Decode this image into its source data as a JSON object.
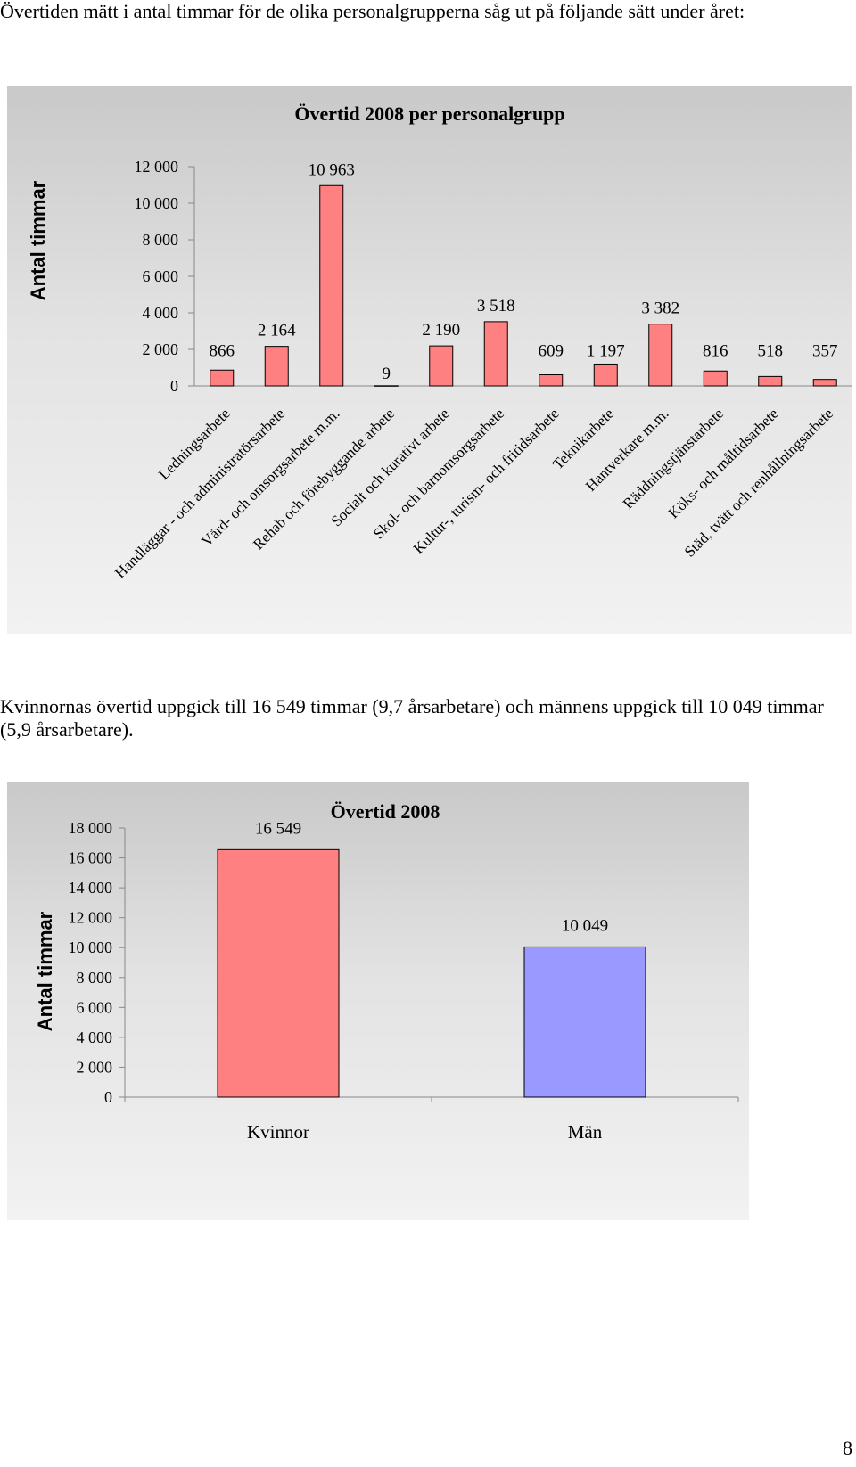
{
  "intro_text": "Övertiden mätt i antal timmar för de olika personalgrupperna såg ut på följande sätt under året:",
  "summary_text": "Kvinnornas övertid uppgick till 16 549 timmar (9,7 årsarbetare) och männens uppgick till 10 049 timmar (5,9 årsarbetare).",
  "page_number": "8",
  "chart_data": [
    {
      "type": "bar",
      "title": "Övertid 2008 per personalgrupp",
      "ylabel": "Antal timmar",
      "xlabel": "",
      "ylim": [
        0,
        12000
      ],
      "yticks": [
        0,
        2000,
        4000,
        6000,
        8000,
        10000,
        12000
      ],
      "ytick_labels": [
        "0",
        "2 000",
        "4 000",
        "6 000",
        "8 000",
        "10 000",
        "12 000"
      ],
      "categories": [
        "Ledningsarbete",
        "Handläggar - och administratörsarbete",
        "Vård- och omsorgsarbete m.m.",
        "Rehab och förebyggande arbete",
        "Socialt och kurativt arbete",
        "Skol- och barnomsorgsarbete",
        "Kultur-, turism- och fritidsarbete",
        "Teknikarbete",
        "Hantverkare m.m.",
        "Räddningstjänstarbete",
        "Köks- och måltidsarbete",
        "Städ, tvätt och renhållningsarbete"
      ],
      "values": [
        866,
        2164,
        10963,
        9,
        2190,
        3518,
        609,
        1197,
        3382,
        816,
        518,
        357
      ],
      "value_labels": [
        "866",
        "2 164",
        "10 963",
        "9",
        "2 190",
        "3 518",
        "609",
        "1 197",
        "3 382",
        "816",
        "518",
        "357"
      ],
      "colors": [
        "#ff8080"
      ],
      "grid": false,
      "legend": "none"
    },
    {
      "type": "bar",
      "title": "Övertid 2008",
      "ylabel": "Antal timmar",
      "xlabel": "",
      "ylim": [
        0,
        18000
      ],
      "yticks": [
        0,
        2000,
        4000,
        6000,
        8000,
        10000,
        12000,
        14000,
        16000,
        18000
      ],
      "ytick_labels": [
        "0",
        "2 000",
        "4 000",
        "6 000",
        "8 000",
        "10 000",
        "12 000",
        "14 000",
        "16 000",
        "18 000"
      ],
      "categories": [
        "Kvinnor",
        "Män"
      ],
      "values": [
        16549,
        10049
      ],
      "value_labels": [
        "16 549",
        "10 049"
      ],
      "colors": [
        "#ff8080",
        "#9999ff"
      ],
      "grid": false,
      "legend": "none"
    }
  ]
}
